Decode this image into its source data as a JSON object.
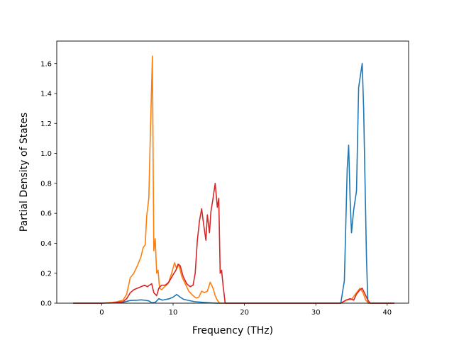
{
  "chart_data": {
    "type": "line",
    "title": "",
    "xlabel": "Frequency (THz)",
    "ylabel": "Partial Density of States",
    "xlim": [
      -6.3,
      43.0
    ],
    "ylim": [
      0.0,
      1.75
    ],
    "grid": false,
    "legend": "none",
    "x_ticks": [
      0,
      10,
      20,
      30,
      40
    ],
    "x_tick_labels": [
      "0",
      "10",
      "20",
      "30",
      "40"
    ],
    "y_ticks": [
      0.0,
      0.2,
      0.4,
      0.6,
      0.8,
      1.0,
      1.2,
      1.4,
      1.6
    ],
    "y_tick_labels": [
      "0.0",
      "0.2",
      "0.4",
      "0.6",
      "0.8",
      "1.0",
      "1.2",
      "1.4",
      "1.6"
    ],
    "series": [
      {
        "color": "#1f77b4",
        "points": [
          [
            -4,
            0
          ],
          [
            0,
            0
          ],
          [
            2,
            0.002
          ],
          [
            3,
            0.005
          ],
          [
            3.5,
            0.012
          ],
          [
            4,
            0.018
          ],
          [
            5,
            0.02
          ],
          [
            5.5,
            0.022
          ],
          [
            6,
            0.02
          ],
          [
            6.6,
            0.015
          ],
          [
            7,
            0.003
          ],
          [
            7.5,
            0.005
          ],
          [
            8,
            0.03
          ],
          [
            8.5,
            0.02
          ],
          [
            9,
            0.025
          ],
          [
            9.5,
            0.03
          ],
          [
            10,
            0.04
          ],
          [
            10.5,
            0.058
          ],
          [
            11,
            0.04
          ],
          [
            11.5,
            0.025
          ],
          [
            12,
            0.02
          ],
          [
            13,
            0.01
          ],
          [
            14,
            0.006
          ],
          [
            15,
            0.003
          ],
          [
            16,
            0
          ],
          [
            20,
            0
          ],
          [
            30,
            0
          ],
          [
            33.5,
            0
          ],
          [
            34,
            0.15
          ],
          [
            34.4,
            0.9
          ],
          [
            34.6,
            1.055
          ],
          [
            34.8,
            0.7
          ],
          [
            35,
            0.47
          ],
          [
            35.3,
            0.62
          ],
          [
            35.7,
            0.75
          ],
          [
            36,
            1.44
          ],
          [
            36.5,
            1.6
          ],
          [
            36.7,
            1.3
          ],
          [
            37.1,
            0.3
          ],
          [
            37.3,
            0
          ],
          [
            41,
            0
          ]
        ]
      },
      {
        "color": "#ff7f0e",
        "points": [
          [
            -4,
            0
          ],
          [
            0,
            0
          ],
          [
            1.5,
            0.005
          ],
          [
            2,
            0.008
          ],
          [
            3,
            0.02
          ],
          [
            3.5,
            0.06
          ],
          [
            4,
            0.17
          ],
          [
            4.5,
            0.2
          ],
          [
            5,
            0.25
          ],
          [
            5.5,
            0.31
          ],
          [
            5.8,
            0.37
          ],
          [
            6.1,
            0.39
          ],
          [
            6.3,
            0.58
          ],
          [
            6.6,
            0.7
          ],
          [
            6.8,
            1.1
          ],
          [
            7.1,
            1.65
          ],
          [
            7.3,
            0.35
          ],
          [
            7.5,
            0.43
          ],
          [
            7.7,
            0.2
          ],
          [
            7.9,
            0.22
          ],
          [
            8.1,
            0.1
          ],
          [
            8.4,
            0.09
          ],
          [
            8.8,
            0.11
          ],
          [
            9.3,
            0.13
          ],
          [
            9.8,
            0.2
          ],
          [
            10.2,
            0.27
          ],
          [
            10.5,
            0.23
          ],
          [
            10.8,
            0.26
          ],
          [
            11.2,
            0.18
          ],
          [
            11.6,
            0.14
          ],
          [
            12.2,
            0.08
          ],
          [
            12.8,
            0.05
          ],
          [
            13.2,
            0.035
          ],
          [
            13.6,
            0.04
          ],
          [
            14,
            0.08
          ],
          [
            14.4,
            0.07
          ],
          [
            14.8,
            0.08
          ],
          [
            15.2,
            0.14
          ],
          [
            15.6,
            0.1
          ],
          [
            15.9,
            0.05
          ],
          [
            16.2,
            0.02
          ],
          [
            16.5,
            0
          ],
          [
            20,
            0
          ],
          [
            30,
            0
          ],
          [
            33.5,
            0
          ],
          [
            34.3,
            0.02
          ],
          [
            35,
            0.025
          ],
          [
            35.7,
            0.07
          ],
          [
            36.2,
            0.1
          ],
          [
            36.6,
            0.07
          ],
          [
            37,
            0.02
          ],
          [
            37.4,
            0
          ],
          [
            41,
            0
          ]
        ]
      },
      {
        "color": "#d62728",
        "points": [
          [
            -4,
            0
          ],
          [
            0,
            0
          ],
          [
            1.5,
            0.003
          ],
          [
            3,
            0.01
          ],
          [
            3.5,
            0.03
          ],
          [
            4,
            0.07
          ],
          [
            4.5,
            0.09
          ],
          [
            5,
            0.1
          ],
          [
            5.5,
            0.11
          ],
          [
            6,
            0.12
          ],
          [
            6.4,
            0.11
          ],
          [
            7,
            0.13
          ],
          [
            7.3,
            0.07
          ],
          [
            7.7,
            0.05
          ],
          [
            8,
            0.1
          ],
          [
            8.4,
            0.12
          ],
          [
            8.9,
            0.12
          ],
          [
            9.4,
            0.14
          ],
          [
            10,
            0.19
          ],
          [
            10.4,
            0.22
          ],
          [
            10.7,
            0.26
          ],
          [
            11,
            0.25
          ],
          [
            11.4,
            0.18
          ],
          [
            11.9,
            0.13
          ],
          [
            12.4,
            0.11
          ],
          [
            12.8,
            0.12
          ],
          [
            13.1,
            0.2
          ],
          [
            13.4,
            0.42
          ],
          [
            13.7,
            0.55
          ],
          [
            14,
            0.63
          ],
          [
            14.3,
            0.52
          ],
          [
            14.6,
            0.42
          ],
          [
            14.8,
            0.59
          ],
          [
            15.1,
            0.47
          ],
          [
            15.3,
            0.61
          ],
          [
            15.6,
            0.7
          ],
          [
            15.9,
            0.8
          ],
          [
            16.2,
            0.64
          ],
          [
            16.4,
            0.7
          ],
          [
            16.6,
            0.2
          ],
          [
            16.8,
            0.22
          ],
          [
            17,
            0.12
          ],
          [
            17.3,
            0
          ],
          [
            20,
            0
          ],
          [
            30,
            0
          ],
          [
            33.5,
            0
          ],
          [
            34.2,
            0.02
          ],
          [
            34.8,
            0.03
          ],
          [
            35.3,
            0.02
          ],
          [
            35.7,
            0.06
          ],
          [
            36.2,
            0.09
          ],
          [
            36.5,
            0.1
          ],
          [
            36.9,
            0.06
          ],
          [
            37.3,
            0.02
          ],
          [
            37.6,
            0
          ],
          [
            41,
            0
          ]
        ]
      }
    ]
  }
}
